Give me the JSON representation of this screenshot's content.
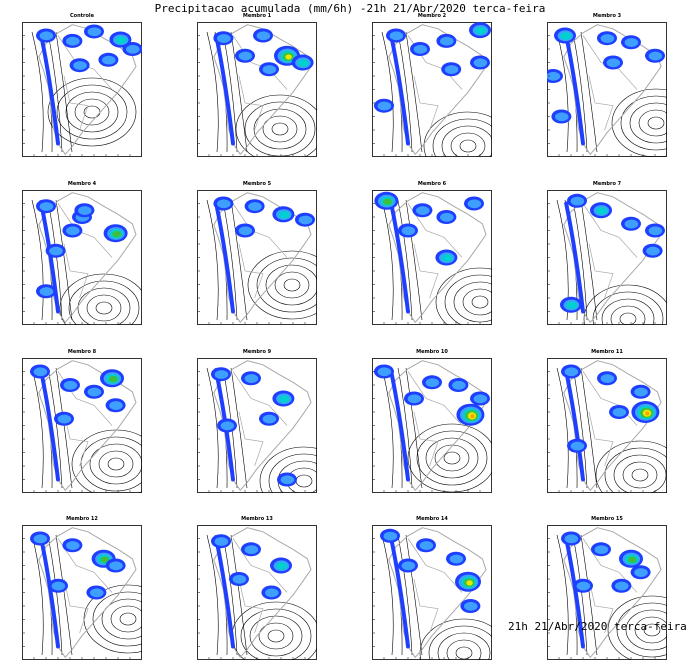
{
  "title": "Precipitacao acumulada (mm/6h) -21h 21/Abr/2020 terca-feira",
  "panels": [
    {
      "label": "Controle",
      "rain": [
        [
          0.2,
          0.1,
          1
        ],
        [
          0.42,
          0.14,
          1
        ],
        [
          0.6,
          0.07,
          1
        ],
        [
          0.82,
          0.13,
          2
        ],
        [
          0.72,
          0.28,
          1
        ],
        [
          0.48,
          0.32,
          1
        ],
        [
          0.92,
          0.2,
          1
        ]
      ]
    },
    {
      "label": "Membro 1",
      "rain": [
        [
          0.22,
          0.12,
          1
        ],
        [
          0.55,
          0.1,
          1
        ],
        [
          0.75,
          0.25,
          4
        ],
        [
          0.88,
          0.3,
          2
        ],
        [
          0.6,
          0.35,
          1
        ],
        [
          0.4,
          0.25,
          1
        ]
      ]
    },
    {
      "label": "Membro 2",
      "rain": [
        [
          0.2,
          0.1,
          1
        ],
        [
          0.4,
          0.2,
          1
        ],
        [
          0.62,
          0.14,
          1
        ],
        [
          0.9,
          0.06,
          2
        ],
        [
          0.9,
          0.3,
          1
        ],
        [
          0.1,
          0.62,
          1
        ],
        [
          0.66,
          0.35,
          1
        ]
      ]
    },
    {
      "label": "Membro 3",
      "rain": [
        [
          0.15,
          0.1,
          2
        ],
        [
          0.5,
          0.12,
          1
        ],
        [
          0.7,
          0.15,
          1
        ],
        [
          0.9,
          0.25,
          1
        ],
        [
          0.05,
          0.4,
          1
        ],
        [
          0.12,
          0.7,
          1
        ],
        [
          0.55,
          0.3,
          1
        ]
      ]
    },
    {
      "label": "Membro 4",
      "rain": [
        [
          0.2,
          0.12,
          1
        ],
        [
          0.5,
          0.2,
          1
        ],
        [
          0.78,
          0.32,
          3
        ],
        [
          0.28,
          0.45,
          1
        ],
        [
          0.52,
          0.15,
          1
        ],
        [
          0.2,
          0.75,
          1
        ],
        [
          0.42,
          0.3,
          1
        ]
      ]
    },
    {
      "label": "Membro 5",
      "rain": [
        [
          0.22,
          0.1,
          1
        ],
        [
          0.48,
          0.12,
          1
        ],
        [
          0.72,
          0.18,
          2
        ],
        [
          0.9,
          0.22,
          1
        ],
        [
          0.4,
          0.3,
          1
        ]
      ]
    },
    {
      "label": "Membro 6",
      "rain": [
        [
          0.12,
          0.08,
          3
        ],
        [
          0.42,
          0.15,
          1
        ],
        [
          0.62,
          0.2,
          1
        ],
        [
          0.85,
          0.1,
          1
        ],
        [
          0.62,
          0.5,
          2
        ],
        [
          0.3,
          0.3,
          1
        ]
      ]
    },
    {
      "label": "Membro 7",
      "rain": [
        [
          0.25,
          0.08,
          1
        ],
        [
          0.45,
          0.15,
          2
        ],
        [
          0.7,
          0.25,
          1
        ],
        [
          0.9,
          0.3,
          1
        ],
        [
          0.2,
          0.85,
          2
        ],
        [
          0.88,
          0.45,
          1
        ]
      ]
    },
    {
      "label": "Membro 8",
      "rain": [
        [
          0.15,
          0.1,
          1
        ],
        [
          0.4,
          0.2,
          1
        ],
        [
          0.6,
          0.25,
          1
        ],
        [
          0.75,
          0.15,
          3
        ],
        [
          0.78,
          0.35,
          1
        ],
        [
          0.35,
          0.45,
          1
        ]
      ]
    },
    {
      "label": "Membro 9",
      "rain": [
        [
          0.2,
          0.12,
          1
        ],
        [
          0.45,
          0.15,
          1
        ],
        [
          0.72,
          0.3,
          2
        ],
        [
          0.6,
          0.45,
          1
        ],
        [
          0.75,
          0.9,
          1
        ],
        [
          0.25,
          0.5,
          1
        ]
      ]
    },
    {
      "label": "Membro 10",
      "rain": [
        [
          0.1,
          0.1,
          1
        ],
        [
          0.5,
          0.18,
          1
        ],
        [
          0.72,
          0.2,
          1
        ],
        [
          0.82,
          0.42,
          5
        ],
        [
          0.9,
          0.3,
          1
        ],
        [
          0.35,
          0.3,
          1
        ]
      ]
    },
    {
      "label": "Membro 11",
      "rain": [
        [
          0.2,
          0.1,
          1
        ],
        [
          0.5,
          0.15,
          1
        ],
        [
          0.78,
          0.25,
          1
        ],
        [
          0.82,
          0.4,
          5
        ],
        [
          0.25,
          0.65,
          1
        ],
        [
          0.6,
          0.4,
          1
        ]
      ]
    },
    {
      "label": "Membro 12",
      "rain": [
        [
          0.15,
          0.1,
          1
        ],
        [
          0.42,
          0.15,
          1
        ],
        [
          0.68,
          0.25,
          3
        ],
        [
          0.78,
          0.3,
          1
        ],
        [
          0.62,
          0.5,
          1
        ],
        [
          0.3,
          0.45,
          1
        ]
      ]
    },
    {
      "label": "Membro 13",
      "rain": [
        [
          0.2,
          0.12,
          1
        ],
        [
          0.45,
          0.18,
          1
        ],
        [
          0.7,
          0.3,
          2
        ],
        [
          0.62,
          0.5,
          1
        ],
        [
          0.35,
          0.4,
          1
        ]
      ]
    },
    {
      "label": "Membro 14",
      "rain": [
        [
          0.15,
          0.08,
          1
        ],
        [
          0.45,
          0.15,
          1
        ],
        [
          0.7,
          0.25,
          1
        ],
        [
          0.8,
          0.42,
          4
        ],
        [
          0.82,
          0.6,
          1
        ],
        [
          0.3,
          0.3,
          1
        ]
      ]
    },
    {
      "label": "Membro 15",
      "rain": [
        [
          0.2,
          0.1,
          1
        ],
        [
          0.45,
          0.18,
          1
        ],
        [
          0.7,
          0.25,
          3
        ],
        [
          0.78,
          0.35,
          1
        ],
        [
          0.62,
          0.45,
          1
        ],
        [
          0.3,
          0.45,
          1
        ]
      ]
    }
  ],
  "footer": "21h 21/Abr/2020 terca-feira",
  "colors": {
    "blue": "#1f3fff",
    "lightblue": "#3f9fff",
    "cyan": "#00d0d0",
    "green": "#3fbf3f",
    "yellow": "#e8e800",
    "orange": "#ff9f00",
    "red": "#e00000",
    "land": "#a8a8a8",
    "contour": "#000000"
  }
}
